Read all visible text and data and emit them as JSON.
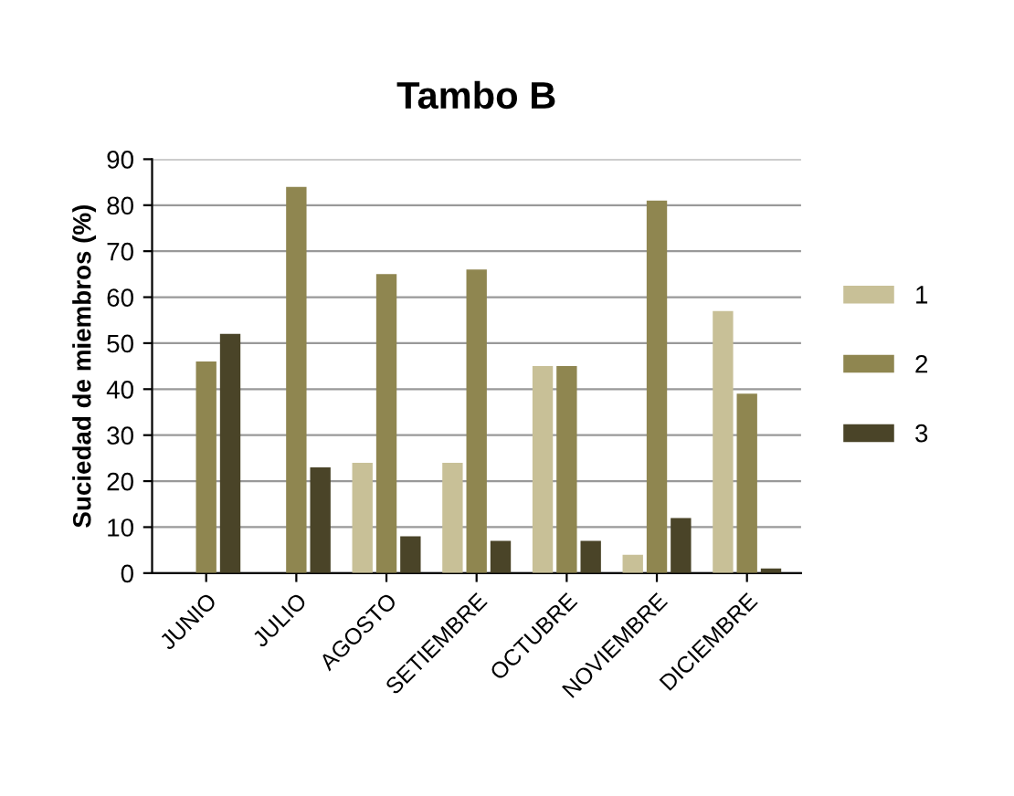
{
  "chart_data": {
    "type": "bar",
    "title": "Tambo B",
    "ylabel": "Suciedad de miembros (%)",
    "categories": [
      "JUNIO",
      "JULIO",
      "AGOSTO",
      "SETIEMBRE",
      "OCTUBRE",
      "NOVIEMBRE",
      "DICIEMBRE"
    ],
    "series": [
      {
        "name": "1",
        "color": "#c8c097",
        "values": [
          0,
          0,
          24,
          24,
          45,
          4,
          57
        ]
      },
      {
        "name": "2",
        "color": "#8f8650",
        "values": [
          46,
          84,
          65,
          66,
          45,
          81,
          39
        ]
      },
      {
        "name": "3",
        "color": "#4a4428",
        "values": [
          52,
          23,
          8,
          7,
          7,
          12,
          1
        ]
      }
    ],
    "ylim": [
      0,
      90
    ],
    "yticks": [
      0,
      10,
      20,
      30,
      40,
      50,
      60,
      70,
      80,
      90
    ],
    "grid": "y",
    "legend": "right"
  }
}
